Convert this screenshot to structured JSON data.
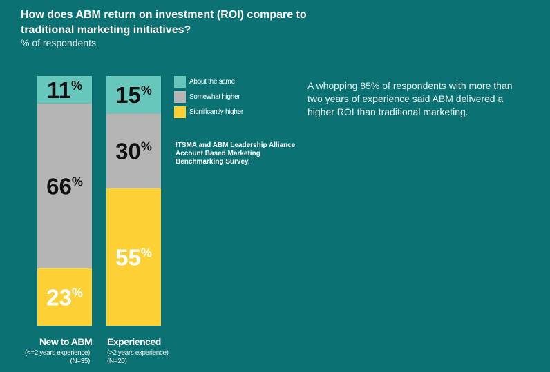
{
  "title": "How does ABM return on investment (ROI) compare to traditional marketing initiatives?",
  "subtitle": "% of respondents",
  "note": "A whopping 85% of respondents with more than two years of experience said ABM delivered a higher ROI than traditional marketing.",
  "source": "ITSMA and ABM Leadership Alliance Account Based Marketing Benchmarking Survey,",
  "colors": {
    "background": "#0b7173",
    "about_same": "#68c7bc",
    "somewhat_higher": "#b5b5b5",
    "significantly_higher": "#fdd035"
  },
  "categories_detail": [
    {
      "name": "New to ABM",
      "sub1": "(<=2 years experience)",
      "sub2": "(N=35)"
    },
    {
      "name": "Experienced",
      "sub1": "(>2 years experience)",
      "sub2": "(N=20)"
    }
  ],
  "chart_data": {
    "type": "bar",
    "stacked": true,
    "categories": [
      "New to ABM",
      "Experienced"
    ],
    "series": [
      {
        "name": "About the same",
        "values": [
          11,
          15
        ],
        "color": "#68c7bc",
        "label_color": "#111111"
      },
      {
        "name": "Somewhat higher",
        "values": [
          66,
          30
        ],
        "color": "#b5b5b5",
        "label_color": "#111111"
      },
      {
        "name": "Significantly higher",
        "values": [
          23,
          55
        ],
        "color": "#fdd035",
        "label_color": "#ffffff"
      }
    ],
    "unit": "%",
    "legend_position": "right",
    "grid": false
  }
}
